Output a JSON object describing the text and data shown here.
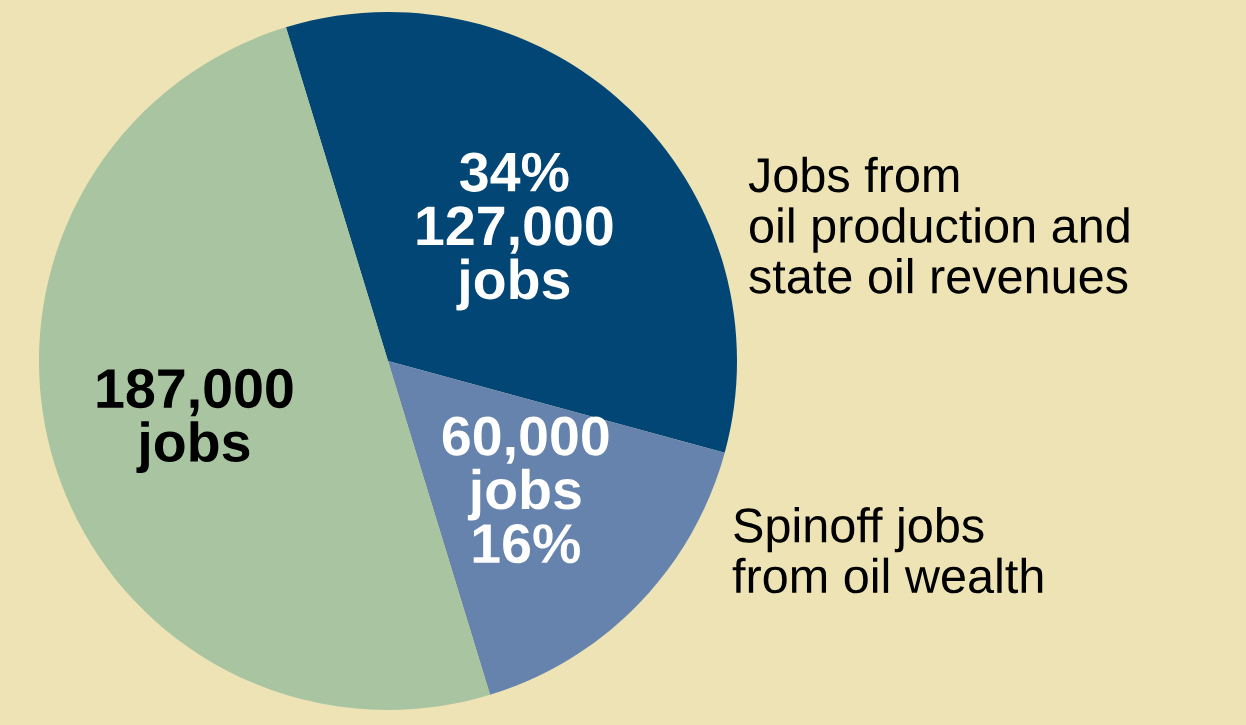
{
  "chart_data": {
    "type": "pie",
    "categories": [
      "Jobs from\noil production and\nstate oil revenues",
      "Spinoff jobs\nfrom oil wealth",
      null
    ],
    "values": [
      127000,
      60000,
      187000
    ],
    "colors": [
      "#024676",
      "#6683ad",
      "#a8c4a0"
    ],
    "value_labels": [
      "34%\n127,000\njobs",
      "60,000\njobs\n16%",
      "187,000\njobs"
    ],
    "legend": false
  }
}
